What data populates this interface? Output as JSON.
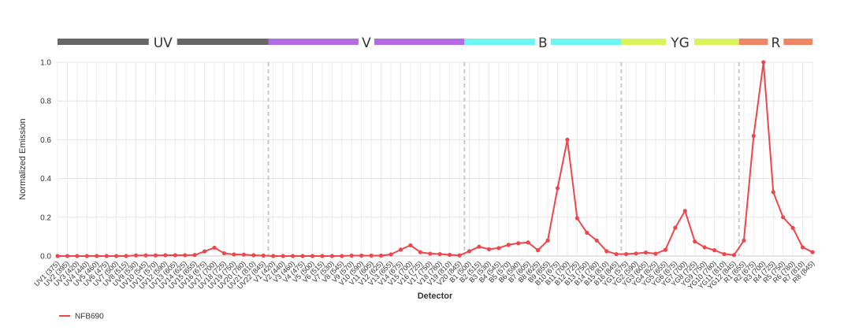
{
  "chart_data": {
    "type": "line",
    "xlabel": "Detector",
    "ylabel": "Normalized Emission",
    "ylim": [
      0,
      1.0
    ],
    "yticks": [
      "0.0",
      "0.2",
      "0.4",
      "0.6",
      "0.8",
      "1.0"
    ],
    "grid": true,
    "legend_position": "bottom-left",
    "categories": [
      "UV1 (375)",
      "UV2 (395)",
      "UV3 (420)",
      "UV4 (440)",
      "UV5 (460)",
      "UV6 (475)",
      "UV7 (500)",
      "UV8 (515)",
      "UV9 (530)",
      "UV10 (545)",
      "UV11 (570)",
      "UV12 (590)",
      "UV13 (605)",
      "UV14 (625)",
      "UV15 (655)",
      "UV16 (675)",
      "UV17 (700)",
      "UV18 (725)",
      "UV19 (750)",
      "UV20 (780)",
      "UV21 (810)",
      "UV22 (845)",
      "V1 (420)",
      "V2 (440)",
      "V3 (460)",
      "V4 (475)",
      "V5 (500)",
      "V6 (515)",
      "V7 (530)",
      "V8 (545)",
      "V9 (570)",
      "V10 (590)",
      "V11 (605)",
      "V12 (625)",
      "V13 (655)",
      "V14 (675)",
      "V15 (700)",
      "V16 (725)",
      "V17 (750)",
      "V18 (780)",
      "V19 (810)",
      "V20 (845)",
      "B1 (500)",
      "B2 (515)",
      "B3 (530)",
      "B4 (545)",
      "B5 (570)",
      "B6 (590)",
      "B7 (605)",
      "B8 (625)",
      "B9 (655)",
      "B10 (675)",
      "B11 (700)",
      "B12 (725)",
      "B13 (750)",
      "B14 (780)",
      "B15 (810)",
      "B16 (845)",
      "YG1 (575)",
      "YG2 (590)",
      "YG3 (605)",
      "YG4 (625)",
      "YG5 (655)",
      "YG6 (675)",
      "YG7 (700)",
      "YG8 (725)",
      "YG9 (750)",
      "YG10 (780)",
      "YG11 (810)",
      "YG12 (845)",
      "R1 (655)",
      "R2 (675)",
      "R3 (700)",
      "R4 (725)",
      "R5 (750)",
      "R6 (780)",
      "R7 (810)",
      "R8 (845)"
    ],
    "series": [
      {
        "name": "NFB690",
        "color": "#f0464b",
        "values": [
          0.0,
          0.0,
          0.0,
          0.0,
          0.0,
          0.0,
          0.0,
          0.0,
          0.003,
          0.003,
          0.003,
          0.004,
          0.004,
          0.004,
          0.005,
          0.024,
          0.043,
          0.014,
          0.008,
          0.007,
          0.004,
          0.002,
          0.0,
          0.0,
          0.0,
          0.0,
          0.0,
          0.0,
          0.0,
          0.0,
          0.002,
          0.002,
          0.002,
          0.002,
          0.008,
          0.033,
          0.055,
          0.02,
          0.012,
          0.01,
          0.006,
          0.003,
          0.025,
          0.048,
          0.035,
          0.041,
          0.058,
          0.066,
          0.07,
          0.03,
          0.08,
          0.35,
          0.6,
          0.195,
          0.12,
          0.08,
          0.025,
          0.01,
          0.01,
          0.013,
          0.018,
          0.012,
          0.032,
          0.146,
          0.233,
          0.075,
          0.045,
          0.03,
          0.01,
          0.005,
          0.08,
          0.62,
          1.0,
          0.33,
          0.2,
          0.145,
          0.045,
          0.02
        ]
      }
    ],
    "lasers": [
      {
        "label": "UV",
        "color": "#666666",
        "count": 22
      },
      {
        "label": "V",
        "color": "#b26be0",
        "count": 20
      },
      {
        "label": "B",
        "color": "#6ff4f6",
        "count": 16
      },
      {
        "label": "YG",
        "color": "#d9f45a",
        "count": 12
      },
      {
        "label": "R",
        "color": "#f08566",
        "count": 8
      }
    ]
  }
}
